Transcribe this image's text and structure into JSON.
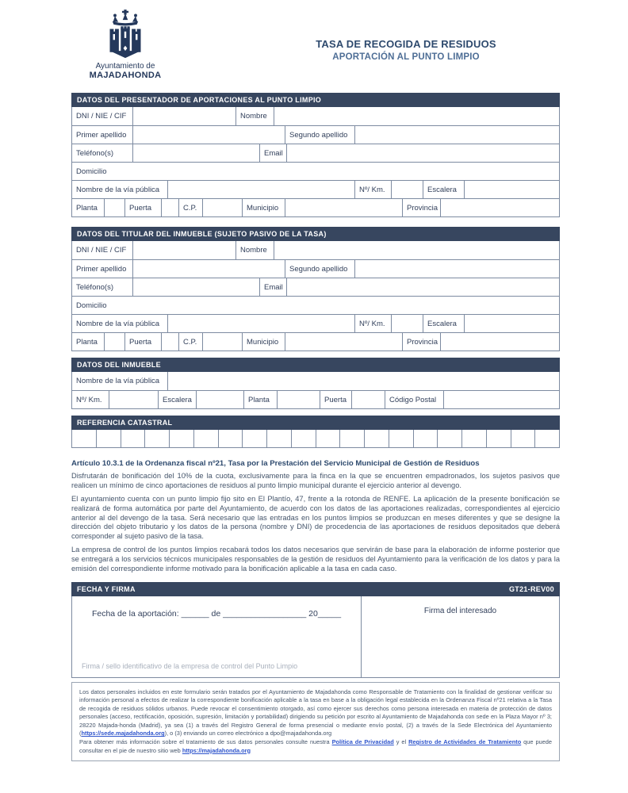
{
  "colors": {
    "header_bar": "#37465F",
    "table_border": "#7D8BA1",
    "title": "#2E4A6E",
    "subtitle": "#4E6E96",
    "label_text": "#33415C",
    "body_text": "#44546A",
    "link": "#2F55CC",
    "muted_text": "#A8B0BC",
    "logo_navy": "#24385B"
  },
  "logo": {
    "org_line1": "Ayuntamiento de",
    "org_line2": "MAJADAHONDA"
  },
  "title": {
    "line1": "TASA DE RECOGIDA DE RESIDUOS",
    "line2": "APORTACIÓN AL PUNTO LIMPIO"
  },
  "sections": {
    "presenter": "DATOS DEL PRESENTADOR DE APORTACIONES AL PUNTO LIMPIO",
    "titular": "DATOS DEL TITULAR DEL INMUEBLE (SUJETO PASIVO DE LA TASA)",
    "inmueble": "DATOS DEL INMUEBLE",
    "catastral": "REFERENCIA CATASTRAL"
  },
  "fields": {
    "dni": "DNI / NIE / CIF",
    "nombre": "Nombre",
    "primer_apellido": "Primer apellido",
    "segundo_apellido": "Segundo apellido",
    "telefono": "Teléfono(s)",
    "email": "Email",
    "domicilio": "Domicilio",
    "via": "Nombre de la vía pública",
    "num": "Nº/ Km.",
    "escalera": "Escalera",
    "planta": "Planta",
    "puerta": "Puerta",
    "cp": "C.P.",
    "municipio": "Municipio",
    "provincia": "Provincia",
    "codigo_postal": "Código Postal"
  },
  "catastral": {
    "cells": 20
  },
  "article": {
    "heading": "Artículo 10.3.1 de la Ordenanza fiscal nº21, Tasa por la Prestación del Servicio Municipal de Gestión de Residuos",
    "paragraphs": [
      "Disfrutarán de bonificación del 10% de la cuota, exclusivamente para la finca en la que se encuentren empadronados, los sujetos pasivos que realicen un mínimo de cinco aportaciones de residuos al punto limpio municipal durante el ejercicio anterior al devengo.",
      "El ayuntamiento cuenta con un punto limpio fijo sito en El Plantío, 47, frente a la rotonda de RENFE. La aplicación de la presente bonificación se realizará de forma automática por parte del Ayuntamiento, de acuerdo con los datos de las aportaciones realizadas, correspondientes al ejercicio anterior al del devengo de la tasa. Será necesario que las entradas en los puntos limpios se produzcan en meses diferentes y que se designe la dirección del objeto tributario y los datos de la persona (nombre y DNI) de procedencia de las aportaciones de residuos depositados que deberá corresponder al sujeto pasivo de la tasa.",
      "La empresa de control de los puntos limpios recabará todos los datos necesarios que servirán de base para la elaboración de informe posterior que se entregará a los servicios técnicos municipales responsables de la gestión de residuos del Ayuntamiento para la verificación de los datos y para la emisión del correspondiente informe motivado para la bonificación aplicable a la tasa en cada caso."
    ]
  },
  "fecha_firma": {
    "header": "FECHA Y FIRMA",
    "code": "GT21-REV00",
    "fecha_line": "Fecha de la aportación:  ______ de __________________ 20_____",
    "firma_interesado": "Firma del interesado",
    "firma_empresa": "Firma / sello identificativo de la empresa de control del Punto Limpio"
  },
  "footer": {
    "p1_text": "Los datos personales incluidos en este formulario serán tratados por el Ayuntamiento de Majadahonda como Responsable de Tratamiento con la finalidad de gestionar verificar su información personal a efectos de realizar la correspondiente bonificación aplicable a la tasa en base a la obligación legal establecida en la Ordenanza Fiscal nº21 relativa a la Tasa de recogida de residuos sólidos urbanos. Puede revocar el consentimiento otorgado, así como ejercer sus derechos como persona interesada en materia de protección de datos personales (acceso, rectificación, oposición, supresión, limitación y portabilidad) dirigiendo su petición por escrito al Ayuntamiento de Majadahonda con sede en la Plaza Mayor nº 3; 28220 Majada-honda (Madrid), ya sea (1) a través del Registro General de forma presencial o mediante envío postal, (2) a través de la Sede Electrónica del Ayuntamiento (",
    "p1_link": "https://sede.majadahonda.org",
    "p1_after": "), o (3) enviando un correo electrónico a dpo@majadahonda.org",
    "p2_t1": "Para obtener más información sobre el tratamiento de sus datos personales consulte nuestra ",
    "p2_link1": "Política de Privacidad",
    "p2_t2": " y el ",
    "p2_link2": "Registro de Actividades de Tratamiento",
    "p2_t3": " que puede consultar en el pie de nuestro sitio web ",
    "p2_link3": "https://majadahonda.org"
  }
}
